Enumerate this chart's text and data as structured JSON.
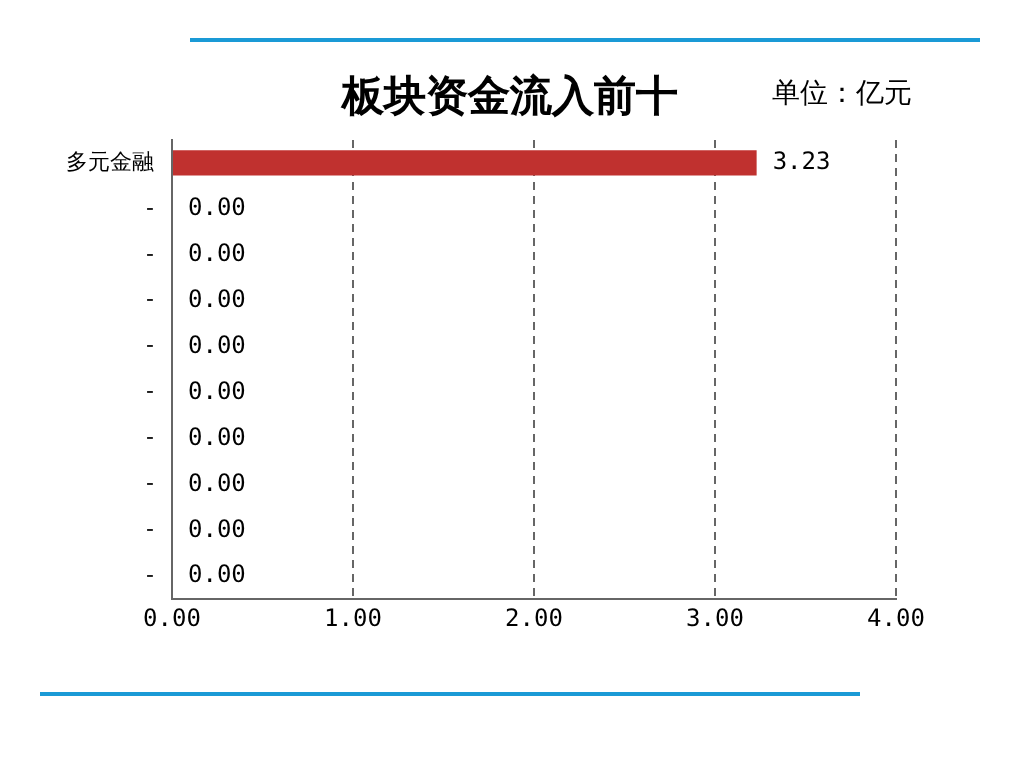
{
  "chart_data": {
    "type": "bar",
    "orientation": "horizontal",
    "title": "板块资金流入前十",
    "annotations": [
      "单位：亿元"
    ],
    "categories": [
      "多元金融",
      "-",
      "-",
      "-",
      "-",
      "-",
      "-",
      "-",
      "-",
      "-"
    ],
    "values": [
      3.23,
      0,
      0,
      0,
      0,
      0,
      0,
      0,
      0,
      0
    ],
    "value_labels": [
      "3.23",
      "0.00",
      "0.00",
      "0.00",
      "0.00",
      "0.00",
      "0.00",
      "0.00",
      "0.00",
      "0.00"
    ],
    "color": "#c0312f",
    "xlim": [
      0,
      4
    ],
    "xticks": [
      {
        "value": 0,
        "label": "0.00"
      },
      {
        "value": 1,
        "label": "1.00"
      },
      {
        "value": 2,
        "label": "2.00"
      },
      {
        "value": 3,
        "label": "3.00"
      },
      {
        "value": 4,
        "label": "4.00"
      }
    ],
    "grid": "x",
    "legend": false
  }
}
